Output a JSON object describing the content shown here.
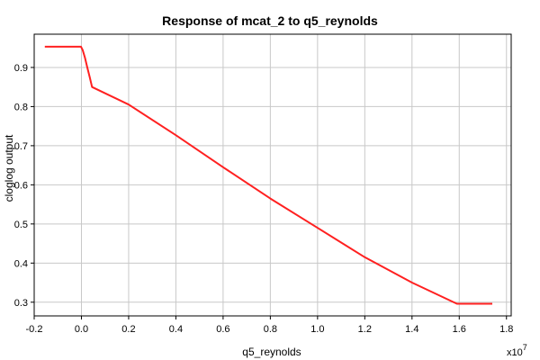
{
  "chart_data": {
    "type": "line",
    "title": "Response of mcat_2 to q5_reynolds",
    "xlabel": "q5_reynolds",
    "ylabel": "cloglog output",
    "x_multiplier_label": "x10",
    "x_multiplier_exponent": "7",
    "xlim": [
      -0.2,
      1.82
    ],
    "ylim": [
      0.265,
      0.985
    ],
    "x_ticks": [
      -0.2,
      0.0,
      0.2,
      0.4,
      0.6,
      0.8,
      1.0,
      1.2,
      1.4,
      1.6,
      1.8
    ],
    "x_tick_labels": [
      "-0.2",
      "0.0",
      "0.2",
      "0.4",
      "0.6",
      "0.8",
      "1.0",
      "1.2",
      "1.4",
      "1.6",
      "1.8"
    ],
    "y_ticks": [
      0.3,
      0.4,
      0.5,
      0.6,
      0.7,
      0.8,
      0.9
    ],
    "y_tick_labels": [
      "0.3",
      "0.4",
      "0.5",
      "0.6",
      "0.7",
      "0.8",
      "0.9"
    ],
    "grid": true,
    "series": [
      {
        "color": "#ff2020",
        "x": [
          -0.155,
          -0.002,
          0.005,
          0.015,
          0.025,
          0.035,
          0.045,
          0.2,
          0.4,
          0.6,
          0.8,
          1.0,
          1.2,
          1.4,
          1.59,
          1.74
        ],
        "y": [
          0.953,
          0.953,
          0.945,
          0.925,
          0.9,
          0.875,
          0.85,
          0.805,
          0.727,
          0.645,
          0.565,
          0.49,
          0.415,
          0.35,
          0.296,
          0.296
        ]
      }
    ]
  }
}
